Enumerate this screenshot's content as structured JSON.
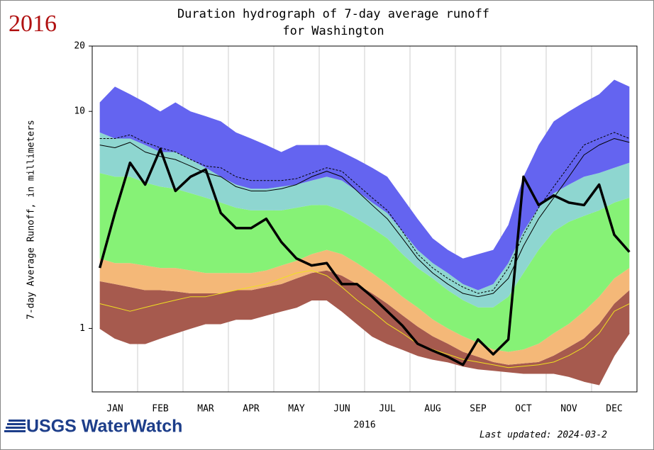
{
  "chart_data": {
    "type": "area",
    "year_label": "2016",
    "title": "Duration hydrograph of 7-day average runoff",
    "subtitle": "for Washington",
    "ylabel": "7-day Average Runoff, in millimeters",
    "xlabel": "2016",
    "log_y": true,
    "ylim": [
      0.51,
      20
    ],
    "yticks": [
      1,
      10,
      20
    ],
    "categories": [
      null,
      "JAN",
      null,
      null,
      "FEB",
      null,
      null,
      "MAR",
      null,
      null,
      "APR",
      null,
      null,
      "MAY",
      null,
      null,
      "JUN",
      null,
      null,
      "JUL",
      null,
      null,
      "AUG",
      null,
      null,
      "SEP",
      null,
      null,
      "OCT",
      null,
      null,
      "NOV",
      null,
      null,
      "DEC",
      null
    ],
    "series": [
      {
        "color": "#a65a4e",
        "values": [
          1.0,
          0.9,
          0.85,
          0.85,
          0.9,
          0.95,
          1.0,
          1.05,
          1.05,
          1.1,
          1.1,
          1.15,
          1.2,
          1.25,
          1.35,
          1.35,
          1.2,
          1.05,
          0.92,
          0.85,
          0.8,
          0.75,
          0.72,
          0.7,
          0.67,
          0.65,
          0.64,
          0.63,
          0.62,
          0.62,
          0.62,
          0.6,
          0.57,
          0.55,
          0.75,
          0.95
        ]
      },
      {
        "color": "#a65a4e",
        "fill": true,
        "values": [
          1.65,
          1.6,
          1.55,
          1.5,
          1.5,
          1.48,
          1.45,
          1.45,
          1.45,
          1.5,
          1.5,
          1.55,
          1.6,
          1.7,
          1.8,
          1.85,
          1.75,
          1.6,
          1.45,
          1.3,
          1.15,
          1.02,
          0.92,
          0.85,
          0.78,
          0.74,
          0.7,
          0.68,
          0.69,
          0.7,
          0.75,
          0.82,
          0.9,
          1.05,
          1.3,
          1.5
        ]
      },
      {
        "color": "#f4b878",
        "fill": true,
        "values": [
          2.1,
          2.0,
          2.0,
          1.95,
          1.9,
          1.9,
          1.85,
          1.8,
          1.8,
          1.8,
          1.8,
          1.85,
          1.95,
          2.05,
          2.2,
          2.3,
          2.2,
          2.0,
          1.8,
          1.6,
          1.4,
          1.25,
          1.1,
          1.0,
          0.92,
          0.86,
          0.8,
          0.78,
          0.8,
          0.85,
          0.95,
          1.05,
          1.2,
          1.4,
          1.7,
          1.9
        ]
      },
      {
        "color": "#86f276",
        "fill": true,
        "values": [
          5.2,
          5,
          5,
          4.7,
          4.5,
          4.4,
          4.2,
          4,
          3.8,
          3.6,
          3.5,
          3.5,
          3.5,
          3.6,
          3.7,
          3.7,
          3.5,
          3.2,
          2.9,
          2.6,
          2.2,
          1.9,
          1.7,
          1.5,
          1.35,
          1.25,
          1.25,
          1.4,
          1.8,
          2.3,
          2.8,
          3.1,
          3.3,
          3.5,
          3.8,
          4
        ]
      },
      {
        "color": "#8ed6d0",
        "fill": true,
        "values": [
          8,
          7.5,
          7.5,
          7,
          6.5,
          6.5,
          6,
          5.5,
          5,
          4.6,
          4.4,
          4.4,
          4.5,
          4.6,
          4.8,
          5,
          4.8,
          4.3,
          3.8,
          3.4,
          2.8,
          2.3,
          2,
          1.8,
          1.6,
          1.5,
          1.6,
          2,
          2.8,
          3.6,
          4.2,
          4.6,
          5,
          5.2,
          5.5,
          5.8
        ]
      },
      {
        "color": "#6464f0",
        "fill": true,
        "values": [
          11,
          13,
          12,
          11,
          10,
          11,
          10,
          9.5,
          9,
          8,
          7.5,
          7,
          6.5,
          7,
          7,
          7,
          6.5,
          6,
          5.5,
          5,
          4,
          3.2,
          2.6,
          2.3,
          2.1,
          2.2,
          2.3,
          3,
          5,
          7,
          9,
          10,
          11,
          12,
          14,
          13
        ]
      },
      {
        "color": "#000000",
        "width": 1,
        "values": [
          7,
          6.8,
          7.2,
          6.5,
          6.2,
          6,
          5.6,
          5.2,
          5,
          4.5,
          4.3,
          4.3,
          4.4,
          4.6,
          5,
          5.3,
          5,
          4.3,
          3.7,
          3.2,
          2.6,
          2.1,
          1.8,
          1.6,
          1.45,
          1.4,
          1.45,
          1.7,
          2.4,
          3.2,
          4,
          5,
          6.3,
          7,
          7.5,
          7.2
        ]
      },
      {
        "color": "#000000",
        "width": 1,
        "dash": true,
        "values": [
          7.5,
          7.5,
          7.8,
          7.2,
          6.8,
          6.5,
          6,
          5.6,
          5.5,
          5,
          4.8,
          4.8,
          4.8,
          4.9,
          5.2,
          5.5,
          5.3,
          4.6,
          4,
          3.5,
          2.8,
          2.2,
          1.9,
          1.7,
          1.55,
          1.45,
          1.5,
          1.9,
          2.7,
          3.6,
          4.5,
          5.6,
          7,
          7.5,
          8,
          7.5
        ]
      },
      {
        "color": "#f0e020",
        "width": 1,
        "values": [
          1.3,
          1.25,
          1.2,
          1.25,
          1.3,
          1.35,
          1.4,
          1.4,
          1.45,
          1.5,
          1.55,
          1.6,
          1.7,
          1.8,
          1.85,
          1.75,
          1.55,
          1.35,
          1.2,
          1.05,
          0.95,
          0.85,
          0.8,
          0.76,
          0.72,
          0.7,
          0.68,
          0.66,
          0.67,
          0.68,
          0.7,
          0.75,
          0.82,
          0.95,
          1.2,
          1.3
        ]
      },
      {
        "color": "#000000",
        "width": 3.5,
        "values": [
          1.9,
          3.4,
          5.8,
          4.6,
          6.7,
          4.3,
          5,
          5.4,
          3.4,
          2.9,
          2.9,
          3.2,
          2.5,
          2.1,
          1.95,
          2,
          1.6,
          1.6,
          1.4,
          1.2,
          1.03,
          0.85,
          0.79,
          0.74,
          0.68,
          0.89,
          0.76,
          0.89,
          5,
          3.7,
          4.1,
          3.8,
          3.7,
          4.6,
          2.7,
          2.25
        ]
      }
    ]
  },
  "logo": "USGS WaterWatch",
  "updated": "Last updated: 2024-03-2"
}
